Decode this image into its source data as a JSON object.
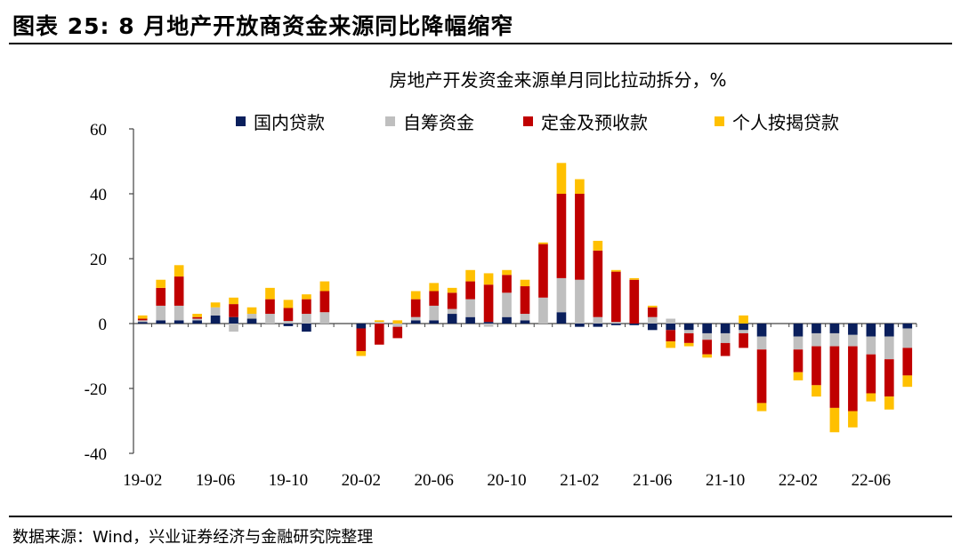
{
  "figure": {
    "title": "图表 25:  8 月地产开放商资金来源同比降幅缩窄",
    "source": "数据来源：Wind，兴业证券经济与金融研究院整理"
  },
  "chart_data": {
    "type": "bar",
    "stacked": true,
    "title": "房地产开发资金来源单月同比拉动拆分，%",
    "xlabel": "",
    "ylabel": "",
    "ylim": [
      -40,
      60
    ],
    "yticks": [
      "60",
      "40",
      "20",
      "0",
      "-20",
      "-40"
    ],
    "grid": false,
    "legend_position": "top",
    "categories": [
      "19-02",
      "19-03",
      "19-04",
      "19-05",
      "19-06",
      "19-07",
      "19-08",
      "19-09",
      "19-10",
      "19-11",
      "19-12",
      "20-01",
      "20-02",
      "20-03",
      "20-04",
      "20-05",
      "20-06",
      "20-07",
      "20-08",
      "20-09",
      "20-10",
      "20-11",
      "20-12",
      "21-01",
      "21-02",
      "21-03",
      "21-04",
      "21-05",
      "21-06",
      "21-07",
      "21-08",
      "21-09",
      "21-10",
      "21-11",
      "21-12",
      "22-01",
      "22-02",
      "22-03",
      "22-04",
      "22-05",
      "22-06",
      "22-07",
      "22-08"
    ],
    "xtick_labels": [
      "19-02",
      "19-06",
      "19-10",
      "20-02",
      "20-06",
      "20-10",
      "21-02",
      "21-06",
      "21-10",
      "22-02",
      "22-06"
    ],
    "series": [
      {
        "name": "国内贷款",
        "color": "#0a1f5c",
        "values": [
          0.5,
          1.0,
          1.0,
          1.0,
          2.5,
          2.0,
          1.5,
          0.0,
          -0.8,
          -2.5,
          0.0,
          null,
          -1.5,
          0.0,
          0.0,
          1.0,
          1.0,
          3.0,
          2.0,
          0.5,
          2.0,
          1.0,
          0.0,
          3.5,
          -1.0,
          -1.0,
          -0.5,
          -0.5,
          -2.0,
          -2.0,
          -2.0,
          -3.0,
          -3.0,
          -2.0,
          -4.0,
          null,
          -4.0,
          -3.0,
          -3.0,
          -3.5,
          -4.0,
          -4.0,
          -1.5
        ]
      },
      {
        "name": "自筹资金",
        "color": "#bfbfbf",
        "values": [
          0.5,
          4.5,
          4.5,
          0.5,
          2.5,
          -2.5,
          1.5,
          3.0,
          0.8,
          3.0,
          3.5,
          null,
          0.0,
          0.5,
          -1.0,
          1.0,
          4.5,
          1.5,
          5.5,
          -1.0,
          7.5,
          2.0,
          8.0,
          10.5,
          13.5,
          2.0,
          0.5,
          0.0,
          2.0,
          1.5,
          -1.0,
          -2.0,
          -3.0,
          -1.0,
          -4.0,
          null,
          -4.0,
          -4.0,
          -4.0,
          -3.5,
          -5.5,
          -7.0,
          -6.0
        ]
      },
      {
        "name": "定金及预收款",
        "color": "#c00000",
        "values": [
          0.5,
          5.5,
          9.0,
          0.5,
          0.0,
          4.0,
          0.0,
          4.5,
          4.0,
          4.5,
          6.5,
          null,
          -7.0,
          -6.5,
          -3.5,
          5.5,
          4.5,
          5.0,
          5.5,
          11.5,
          5.5,
          8.5,
          16.5,
          26.0,
          26.5,
          20.5,
          15.5,
          13.5,
          3.0,
          -3.5,
          -3.0,
          -4.5,
          -4.0,
          -4.5,
          -16.5,
          null,
          -7.0,
          -12.0,
          -19.0,
          -20.0,
          -12.0,
          -11.5,
          -8.5
        ]
      },
      {
        "name": "个人按揭贷款",
        "color": "#ffc000",
        "values": [
          1.0,
          2.5,
          3.5,
          1.0,
          1.5,
          2.0,
          2.0,
          3.5,
          2.5,
          1.5,
          3.0,
          null,
          -1.5,
          0.5,
          1.0,
          2.5,
          2.5,
          1.5,
          3.5,
          3.5,
          1.5,
          2.0,
          0.5,
          9.5,
          4.5,
          3.0,
          0.5,
          0.5,
          0.5,
          -2.0,
          -1.0,
          -1.0,
          0.0,
          2.5,
          -2.5,
          null,
          -2.5,
          -3.5,
          -7.5,
          -5.0,
          -2.5,
          -4.0,
          -3.5
        ]
      }
    ]
  }
}
